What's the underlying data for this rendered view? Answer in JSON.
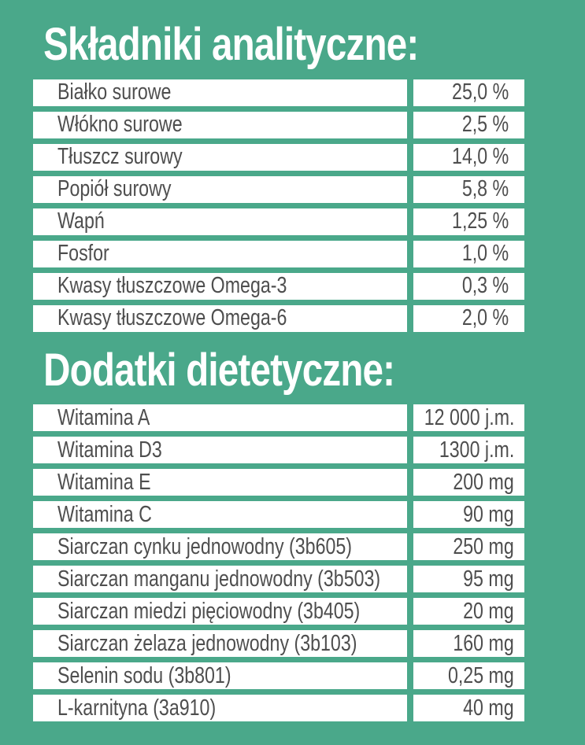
{
  "colors": {
    "background": "#4AA88A",
    "row_background": "#FFFFFF",
    "row_text": "#4E4E4E",
    "title_text": "#FFFFFF"
  },
  "sections": [
    {
      "title": "Składniki analityczne:",
      "rows": [
        {
          "label": "Białko surowe",
          "value": "25,0 %"
        },
        {
          "label": "Włókno surowe",
          "value": "2,5 %"
        },
        {
          "label": "Tłuszcz surowy",
          "value": "14,0 %"
        },
        {
          "label": "Popiół surowy",
          "value": "5,8 %"
        },
        {
          "label": "Wapń",
          "value": "1,25 %"
        },
        {
          "label": "Fosfor",
          "value": "1,0 %"
        },
        {
          "label": "Kwasy tłuszczowe Omega-3",
          "value": "0,3 %"
        },
        {
          "label": "Kwasy tłuszczowe Omega-6",
          "value": "2,0 %"
        }
      ]
    },
    {
      "title": "Dodatki dietetyczne:",
      "rows": [
        {
          "label": "Witamina A",
          "value": "12 000 j.m."
        },
        {
          "label": "Witamina D3",
          "value": "1300 j.m."
        },
        {
          "label": "Witamina E",
          "value": "200 mg"
        },
        {
          "label": "Witamina C",
          "value": "90 mg"
        },
        {
          "label": "Siarczan cynku jednowodny (3b605)",
          "value": "250 mg"
        },
        {
          "label": "Siarczan manganu jednowodny (3b503)",
          "value": "95 mg"
        },
        {
          "label": "Siarczan miedzi pięciowodny (3b405)",
          "value": "20 mg"
        },
        {
          "label": "Siarczan żelaza jednowodny (3b103)",
          "value": "160 mg"
        },
        {
          "label": "Selenin sodu (3b801)",
          "value": "0,25 mg"
        },
        {
          "label": "L-karnityna (3a910)",
          "value": "40 mg"
        }
      ]
    }
  ]
}
